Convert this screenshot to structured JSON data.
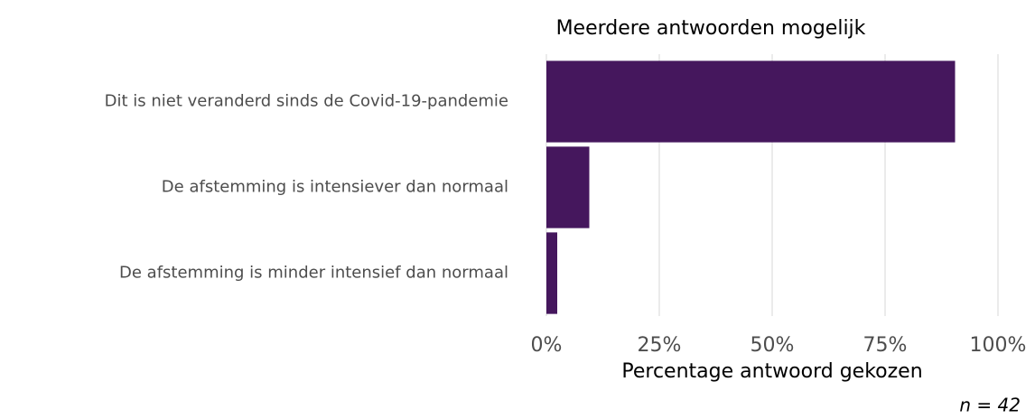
{
  "chart_data": {
    "type": "barh",
    "title": "Meerdere antwoorden mogelijk",
    "categories": [
      "Dit is niet veranderd sinds de Covid-19-pandemie",
      "De afstemming is intensiever dan normaal",
      "De afstemming is minder intensief dan normaal"
    ],
    "values": [
      90.5,
      9.5,
      2.4
    ],
    "color": "#45175d",
    "xlabel": "Percentage antwoord gekozen",
    "caption": "n = 42",
    "xlim": [
      0,
      100
    ],
    "xticks": [
      {
        "value": 0,
        "label": "0%"
      },
      {
        "value": 25,
        "label": "25%"
      },
      {
        "value": 50,
        "label": "50%"
      },
      {
        "value": 75,
        "label": "75%"
      },
      {
        "value": 100,
        "label": "100%"
      }
    ],
    "grid": true
  }
}
